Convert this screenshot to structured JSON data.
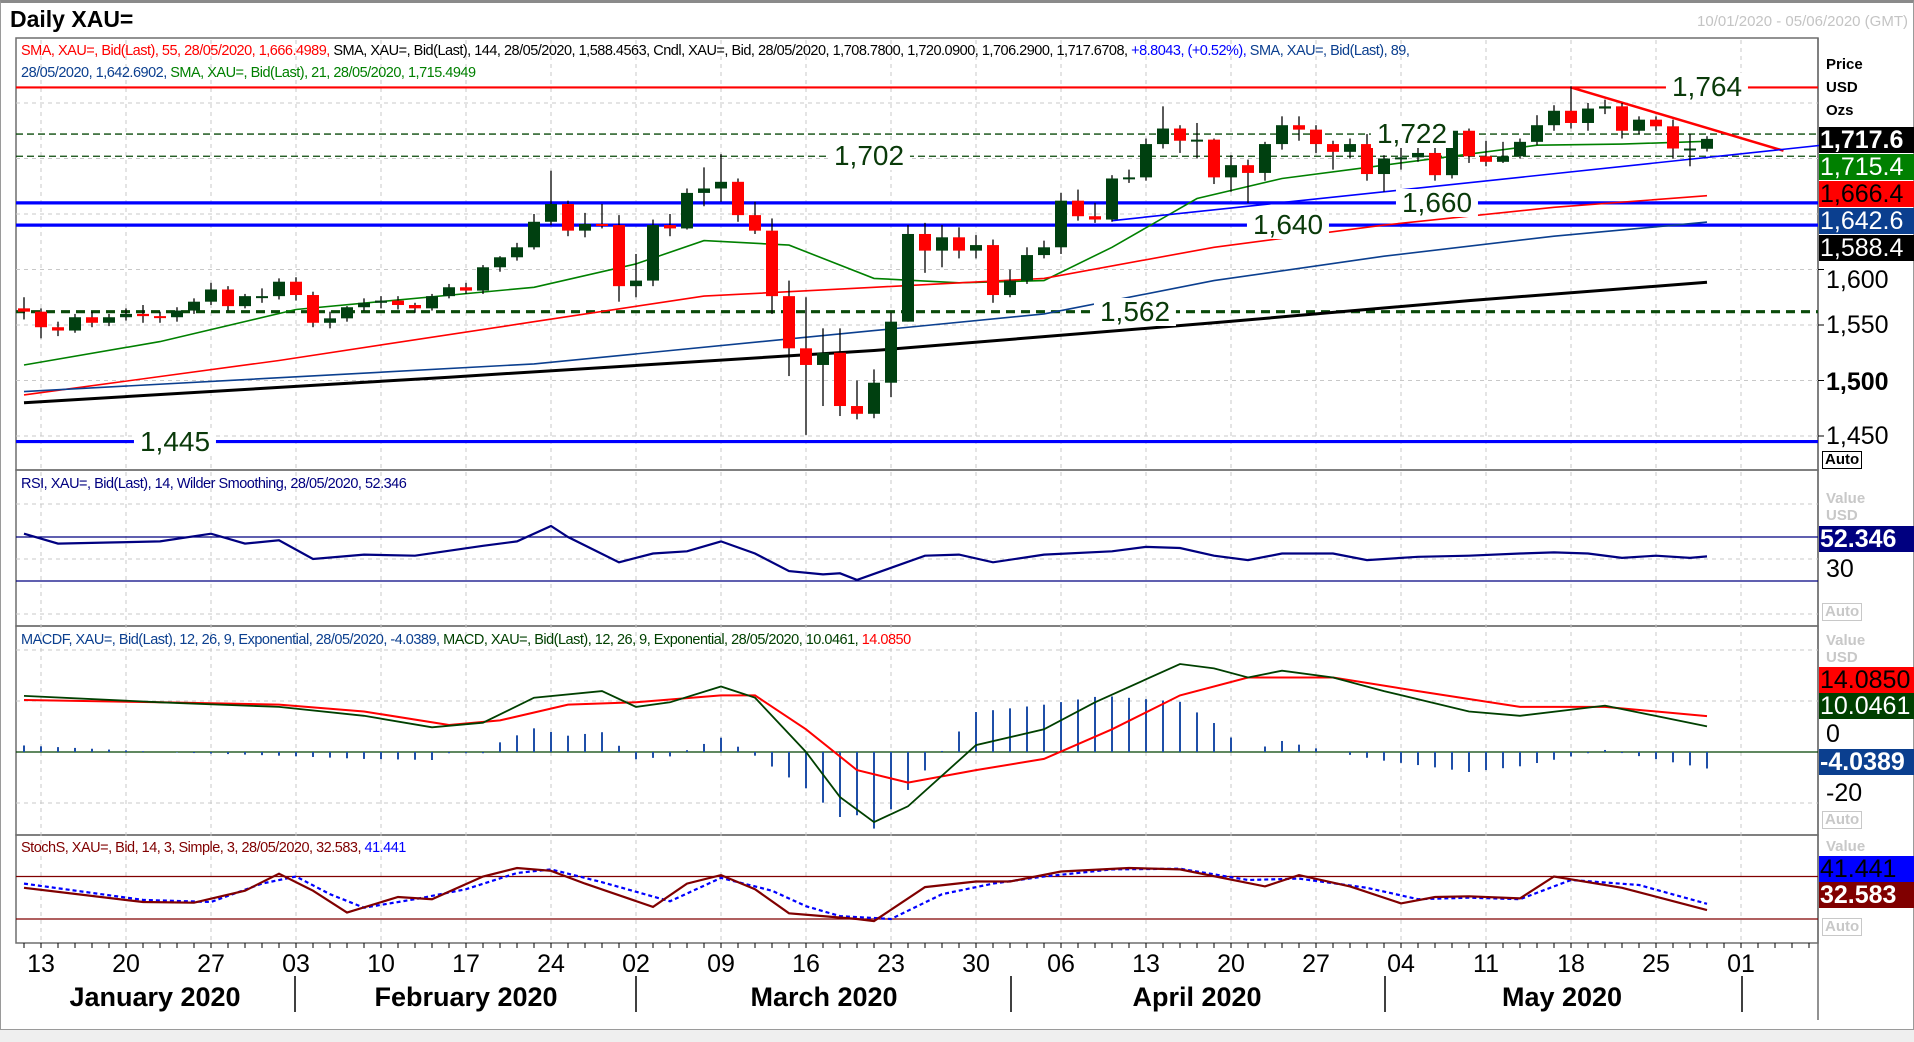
{
  "window": {
    "title": "Daily XAU=",
    "date_range": "10/01/2020 - 05/06/2020 (GMT)"
  },
  "legends": {
    "main_line1": [
      "SMA, XAU=, Bid(Last),  55, 28/05/2020, 1,666.4989,",
      " SMA, XAU=, Bid(Last),  144, 28/05/2020, 1,588.4563, Cndl, XAU=, Bid, 28/05/2020, 1,708.7800, 1,720.0900, 1,706.2900, 1,717.6708,",
      " +8.8043, (+0.52%),",
      " SMA, XAU=, Bid(Last),  89,"
    ],
    "main_line2": [
      "28/05/2020, 1,642.6902,",
      " SMA, XAU=, Bid(Last),  21, 28/05/2020, 1,715.4949"
    ],
    "rsi": "RSI, XAU=, Bid(Last),  14, Wilder Smoothing, 28/05/2020, 52.346",
    "macd": [
      "MACDF, XAU=, Bid(Last),  12, 26, 9, Exponential, 28/05/2020, -4.0389,",
      " MACD, XAU=, Bid(Last),  12, 26, 9, Exponential, 28/05/2020, 10.0461,",
      " 14.0850"
    ],
    "stoch": [
      "StochS, XAU=, Bid,  14, 3, Simple, 3, 28/05/2020, 32.583,",
      " 41.441"
    ]
  },
  "axes": {
    "price": {
      "header": [
        "Price",
        "USD",
        "Ozs"
      ],
      "ticks": [
        "1,600",
        "1,550",
        "1,500",
        "1,450"
      ],
      "auto": "Auto",
      "boxes": [
        {
          "text": "1,717.6",
          "bg": "#000000",
          "fg": "#ffffff"
        },
        {
          "text": "1,715.4",
          "bg": "#008000",
          "fg": "#ffffff"
        },
        {
          "text": "1,666.4",
          "bg": "#ff0000",
          "fg": "#000000"
        },
        {
          "text": "1,642.6",
          "bg": "#0b3f8f",
          "fg": "#ffffff"
        },
        {
          "text": "1,588.4",
          "bg": "#000000",
          "fg": "#ffffff"
        }
      ]
    },
    "rsi": {
      "header": [
        "Value",
        "USD"
      ],
      "tick": "30",
      "box": "52.346",
      "auto": "Auto"
    },
    "macd": {
      "header": [
        "Value",
        "USD"
      ],
      "ticks": [
        "0",
        "-20"
      ],
      "boxes": [
        "14.0850",
        "10.0461",
        "-4.0389"
      ],
      "auto": "Auto"
    },
    "stoch": {
      "header": [
        "Value"
      ],
      "boxes": [
        "41.441",
        "32.583"
      ],
      "auto": "Auto"
    },
    "dates": [
      "13",
      "20",
      "27",
      "03",
      "10",
      "17",
      "24",
      "02",
      "09",
      "16",
      "23",
      "30",
      "06",
      "13",
      "20",
      "27",
      "04",
      "11",
      "18",
      "25",
      "01"
    ],
    "months": [
      "January 2020",
      "February 2020",
      "March 2020",
      "April 2020",
      "May 2020"
    ]
  },
  "levels": [
    {
      "value": 1764,
      "label": "1,764",
      "color": "#ff0000",
      "style": "solid"
    },
    {
      "value": 1722,
      "label": "1,722",
      "color": "#0a4a0a",
      "style": "thin-dash"
    },
    {
      "value": 1702,
      "label": "1,702",
      "color": "#0a4a0a",
      "style": "thin-dash"
    },
    {
      "value": 1660,
      "label": "1,660",
      "color": "#0000ff",
      "style": "solid-thick"
    },
    {
      "value": 1640,
      "label": "1,640",
      "color": "#0000ff",
      "style": "solid-thick"
    },
    {
      "value": 1562,
      "label": "1,562",
      "color": "#0a4a0a",
      "style": "thick-dash"
    },
    {
      "value": 1445,
      "label": "1,445",
      "color": "#0000ff",
      "style": "solid-thick"
    }
  ],
  "chart_data": {
    "type": "candlestick",
    "instrument": "XAU=",
    "first_date": "10/01/2020",
    "last_date": "28/05/2020",
    "opens_override": {
      "0": 1565,
      "99": 1708.78
    },
    "close": [
      1562,
      1548,
      1545,
      1557,
      1552,
      1557,
      1560,
      1558,
      1557,
      1563,
      1571,
      1582,
      1567,
      1576,
      1576,
      1589,
      1577,
      1552,
      1556,
      1566,
      1570,
      1572,
      1568,
      1565,
      1576,
      1584,
      1581,
      1602,
      1611,
      1620,
      1643,
      1659,
      1635,
      1641,
      1640,
      1585,
      1590,
      1640,
      1637,
      1669,
      1673,
      1679,
      1649,
      1635,
      1576,
      1529,
      1514,
      1525,
      1477,
      1470,
      1498,
      1553,
      1632,
      1617,
      1629,
      1617,
      1622,
      1577,
      1590,
      1613,
      1620,
      1662,
      1648,
      1645,
      1682,
      1683,
      1713,
      1727,
      1716,
      1717,
      1683,
      1694,
      1687,
      1713,
      1730,
      1726,
      1713,
      1706,
      1713,
      1686,
      1700,
      1701,
      1705,
      1685,
      1725,
      1702,
      1697,
      1702,
      1715,
      1730,
      1743,
      1732,
      1745,
      1747,
      1725,
      1735,
      1729,
      1709,
      1709,
      1717.67
    ],
    "high": [
      1575,
      1565,
      1553,
      1560,
      1562,
      1560,
      1565,
      1568,
      1562,
      1566,
      1574,
      1588,
      1585,
      1578,
      1583,
      1592,
      1593,
      1580,
      1562,
      1567,
      1574,
      1576,
      1576,
      1570,
      1578,
      1587,
      1588,
      1604,
      1612,
      1624,
      1650,
      1689,
      1662,
      1651,
      1659,
      1649,
      1614,
      1645,
      1650,
      1673,
      1692,
      1704,
      1682,
      1661,
      1646,
      1590,
      1575,
      1547,
      1547,
      1500,
      1510,
      1561,
      1640,
      1642,
      1640,
      1638,
      1631,
      1627,
      1600,
      1620,
      1626,
      1669,
      1672,
      1660,
      1685,
      1690,
      1718,
      1747,
      1730,
      1732,
      1718,
      1703,
      1699,
      1715,
      1738,
      1738,
      1730,
      1716,
      1718,
      1722,
      1703,
      1711,
      1712,
      1710,
      1726,
      1727,
      1716,
      1715,
      1718,
      1739,
      1748,
      1765,
      1750,
      1753,
      1750,
      1738,
      1738,
      1735,
      1722,
      1720.09
    ],
    "low": [
      1555,
      1538,
      1540,
      1543,
      1548,
      1549,
      1554,
      1552,
      1552,
      1553,
      1560,
      1568,
      1563,
      1565,
      1570,
      1573,
      1572,
      1548,
      1547,
      1553,
      1563,
      1565,
      1564,
      1561,
      1563,
      1574,
      1578,
      1578,
      1598,
      1608,
      1618,
      1640,
      1630,
      1629,
      1637,
      1571,
      1575,
      1585,
      1630,
      1636,
      1657,
      1661,
      1643,
      1632,
      1560,
      1504,
      1451,
      1477,
      1468,
      1465,
      1466,
      1485,
      1553,
      1597,
      1602,
      1610,
      1610,
      1570,
      1575,
      1587,
      1610,
      1614,
      1644,
      1642,
      1643,
      1678,
      1680,
      1709,
      1705,
      1700,
      1677,
      1670,
      1660,
      1680,
      1708,
      1716,
      1705,
      1690,
      1700,
      1680,
      1670,
      1690,
      1697,
      1680,
      1682,
      1696,
      1693,
      1696,
      1700,
      1712,
      1725,
      1727,
      1725,
      1740,
      1718,
      1722,
      1725,
      1700,
      1693,
      1706.29
    ],
    "sma": [
      {
        "name": "SMA 21",
        "color": "#008000",
        "points": [
          [
            0,
            1514
          ],
          [
            8,
            1535
          ],
          [
            16,
            1564
          ],
          [
            30,
            1584
          ],
          [
            36,
            1605
          ],
          [
            40,
            1626
          ],
          [
            45,
            1622
          ],
          [
            50,
            1592
          ],
          [
            55,
            1588
          ],
          [
            60,
            1590
          ],
          [
            64,
            1620
          ],
          [
            69,
            1664
          ],
          [
            74,
            1682
          ],
          [
            79,
            1692
          ],
          [
            84,
            1702
          ],
          [
            89,
            1712
          ],
          [
            94,
            1713
          ],
          [
            99,
            1715.49
          ]
        ]
      },
      {
        "name": "SMA 55",
        "color": "#ff0000",
        "points": [
          [
            0,
            1487
          ],
          [
            15,
            1518
          ],
          [
            30,
            1553
          ],
          [
            40,
            1576
          ],
          [
            50,
            1584
          ],
          [
            60,
            1592
          ],
          [
            70,
            1620
          ],
          [
            80,
            1640
          ],
          [
            90,
            1656
          ],
          [
            99,
            1666.5
          ]
        ]
      },
      {
        "name": "SMA 89",
        "color": "#0b3f8f",
        "points": [
          [
            0,
            1490
          ],
          [
            30,
            1515
          ],
          [
            50,
            1545
          ],
          [
            60,
            1560
          ],
          [
            70,
            1590
          ],
          [
            80,
            1612
          ],
          [
            90,
            1630
          ],
          [
            99,
            1642.69
          ]
        ]
      },
      {
        "name": "SMA 144",
        "color": "#000000",
        "points": [
          [
            0,
            1480
          ],
          [
            25,
            1503
          ],
          [
            50,
            1527
          ],
          [
            70,
            1552
          ],
          [
            85,
            1572
          ],
          [
            99,
            1588.46
          ]
        ]
      }
    ],
    "trendlines": [
      {
        "from": [
          91,
          1764
        ],
        "to": [
          103.5,
          1707
        ],
        "color": "#ff0000"
      },
      {
        "from": [
          64,
          1644
        ],
        "to": [
          107,
          1714
        ],
        "color": "#0000ff"
      }
    ],
    "rsi": {
      "period": 14,
      "last": 52.346,
      "bands": [
        70,
        30
      ],
      "points": [
        [
          0,
          73
        ],
        [
          2,
          64
        ],
        [
          5,
          65
        ],
        [
          8,
          66
        ],
        [
          11,
          73
        ],
        [
          13,
          64
        ],
        [
          15,
          67
        ],
        [
          17,
          50
        ],
        [
          20,
          54
        ],
        [
          23,
          53
        ],
        [
          27,
          62
        ],
        [
          29,
          66
        ],
        [
          31,
          80
        ],
        [
          32,
          70
        ],
        [
          35,
          47
        ],
        [
          37,
          55
        ],
        [
          39,
          57
        ],
        [
          41,
          66
        ],
        [
          43,
          55
        ],
        [
          45,
          39
        ],
        [
          47,
          36
        ],
        [
          48,
          37
        ],
        [
          49,
          31
        ],
        [
          51,
          42
        ],
        [
          53,
          53
        ],
        [
          55,
          54
        ],
        [
          57,
          47
        ],
        [
          60,
          54
        ],
        [
          64,
          57
        ],
        [
          66,
          61
        ],
        [
          68,
          60
        ],
        [
          70,
          53
        ],
        [
          72,
          49
        ],
        [
          74,
          55
        ],
        [
          77,
          55
        ],
        [
          79,
          49
        ],
        [
          82,
          52
        ],
        [
          85,
          53
        ],
        [
          88,
          55
        ],
        [
          90,
          56
        ],
        [
          92,
          55
        ],
        [
          94,
          51
        ],
        [
          96,
          53
        ],
        [
          98,
          51
        ],
        [
          99,
          52.346
        ]
      ]
    },
    "macd": {
      "params": [
        12,
        26,
        9
      ],
      "macd": [
        [
          0,
          22
        ],
        [
          8,
          19.5
        ],
        [
          15,
          17.7
        ],
        [
          20,
          14.2
        ],
        [
          24,
          9.7
        ],
        [
          27,
          11.5
        ],
        [
          30,
          21.3
        ],
        [
          34,
          23.9
        ],
        [
          36,
          17.7
        ],
        [
          38,
          19.5
        ],
        [
          41,
          25.7
        ],
        [
          43,
          21.3
        ],
        [
          46,
          0
        ],
        [
          48,
          -17.7
        ],
        [
          50,
          -27.5
        ],
        [
          52,
          -21.3
        ],
        [
          56,
          2.7
        ],
        [
          60,
          8.9
        ],
        [
          63,
          19.5
        ],
        [
          68,
          34.5
        ],
        [
          70,
          32.8
        ],
        [
          72,
          29.2
        ],
        [
          74,
          31.9
        ],
        [
          77,
          29.2
        ],
        [
          80,
          23.9
        ],
        [
          85,
          15.9
        ],
        [
          88,
          14.2
        ],
        [
          93,
          18.2
        ],
        [
          99,
          10.05
        ]
      ],
      "signal": [
        [
          0,
          20.4
        ],
        [
          8,
          19.5
        ],
        [
          15,
          18.6
        ],
        [
          20,
          15.9
        ],
        [
          25,
          10.6
        ],
        [
          28,
          12.4
        ],
        [
          32,
          18.6
        ],
        [
          36,
          19.5
        ],
        [
          41,
          22.2
        ],
        [
          43,
          22.2
        ],
        [
          46,
          8.9
        ],
        [
          49,
          -7.1
        ],
        [
          52,
          -12
        ],
        [
          56,
          -7.1
        ],
        [
          60,
          -2.7
        ],
        [
          64,
          8.9
        ],
        [
          68,
          22.2
        ],
        [
          72,
          29.2
        ],
        [
          77,
          29.2
        ],
        [
          82,
          23.9
        ],
        [
          88,
          17.7
        ],
        [
          93,
          17.7
        ],
        [
          99,
          14.09
        ]
      ]
    },
    "stoch": {
      "params": [
        14,
        3,
        3
      ],
      "bands": [
        80,
        20
      ],
      "k": [
        [
          0,
          64
        ],
        [
          7,
          44
        ],
        [
          10,
          43
        ],
        [
          13,
          60
        ],
        [
          15,
          84
        ],
        [
          17,
          60
        ],
        [
          19,
          29
        ],
        [
          22,
          51
        ],
        [
          24,
          48
        ],
        [
          27,
          80
        ],
        [
          29,
          92
        ],
        [
          31,
          88
        ],
        [
          33,
          70
        ],
        [
          37,
          37
        ],
        [
          39,
          70
        ],
        [
          41,
          82
        ],
        [
          43,
          62
        ],
        [
          45,
          28
        ],
        [
          47,
          24
        ],
        [
          49,
          20
        ],
        [
          50,
          17
        ],
        [
          53,
          65
        ],
        [
          56,
          73
        ],
        [
          58,
          73
        ],
        [
          61,
          87
        ],
        [
          65,
          92
        ],
        [
          68,
          90
        ],
        [
          73,
          66
        ],
        [
          75,
          82
        ],
        [
          78,
          66
        ],
        [
          81,
          42
        ],
        [
          83,
          51
        ],
        [
          85,
          52
        ],
        [
          88,
          49
        ],
        [
          90,
          80
        ],
        [
          94,
          64
        ],
        [
          99,
          32.583
        ]
      ],
      "d": [
        [
          0,
          70
        ],
        [
          7,
          47
        ],
        [
          11,
          44
        ],
        [
          14,
          70
        ],
        [
          16,
          80
        ],
        [
          18,
          55
        ],
        [
          20,
          36
        ],
        [
          23,
          48
        ],
        [
          26,
          62
        ],
        [
          29,
          85
        ],
        [
          31,
          90
        ],
        [
          34,
          72
        ],
        [
          38,
          45
        ],
        [
          41,
          78
        ],
        [
          44,
          60
        ],
        [
          46,
          38
        ],
        [
          48,
          24
        ],
        [
          51,
          20
        ],
        [
          54,
          55
        ],
        [
          57,
          70
        ],
        [
          60,
          80
        ],
        [
          64,
          90
        ],
        [
          68,
          91
        ],
        [
          72,
          75
        ],
        [
          75,
          77
        ],
        [
          79,
          64
        ],
        [
          82,
          48
        ],
        [
          85,
          50
        ],
        [
          88,
          48
        ],
        [
          91,
          75
        ],
        [
          95,
          68
        ],
        [
          99,
          41.441
        ]
      ]
    }
  }
}
